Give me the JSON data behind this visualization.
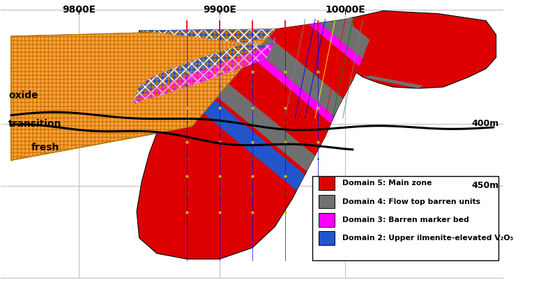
{
  "bg_color": "#ffffff",
  "grid_color": "#c0c0c0",
  "xtick_labels": [
    "9800E",
    "9900E",
    "10000E"
  ],
  "xtick_pos": [
    0.155,
    0.435,
    0.685
  ],
  "ylabel_450": "450m",
  "ylabel_400": "400m",
  "ylabel_450_y": 0.345,
  "ylabel_400_y": 0.565,
  "label_oxide": "oxide",
  "label_transition": "transition",
  "label_fresh": "fresh",
  "oxide_color": "#ffa040",
  "red_color": "#dd0000",
  "gray_color": "#707070",
  "magenta_color": "#ff00ff",
  "blue_color": "#2255cc",
  "legend_items": [
    {
      "label": "Domain 5: Main zone",
      "color": "#dd0000"
    },
    {
      "label": "Domain 4: Flow top barren units",
      "color": "#707070"
    },
    {
      "label": "Domain 3: Barren marker bed",
      "color": "#ff00ff"
    },
    {
      "label": "Domain 2: Upper ilmenite-elevated V₂O₅",
      "color": "#2255cc"
    }
  ]
}
